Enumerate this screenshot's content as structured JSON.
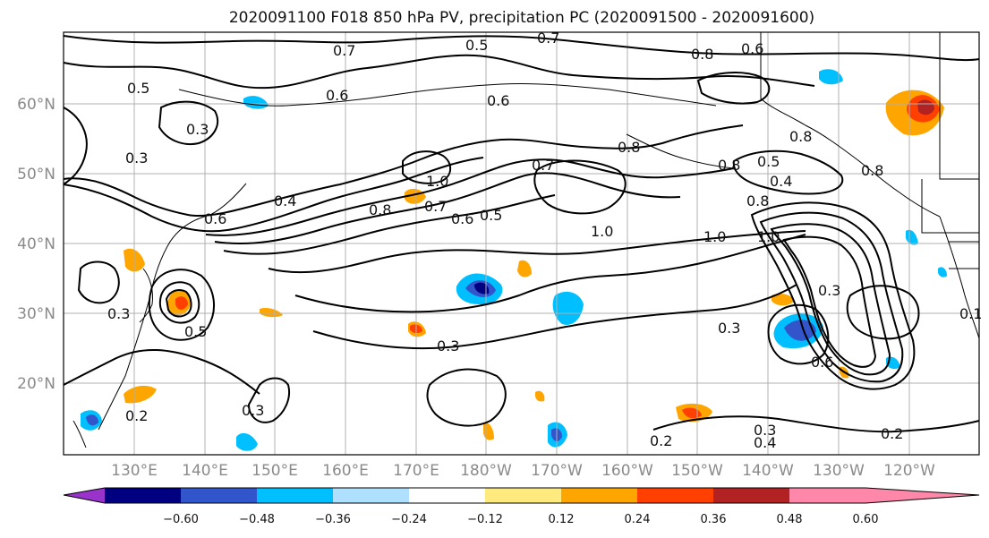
{
  "title": "2020091100 F018 850 hPa PV, precipitation PC (2020091500 - 2020091600)",
  "lat_labels": [
    "60°N",
    "50°N",
    "40°N",
    "30°N",
    "20°N"
  ],
  "lon_labels": [
    "130°E",
    "140°E",
    "150°E",
    "160°E",
    "170°E",
    "180°W",
    "170°W",
    "160°W",
    "150°W",
    "140°W",
    "130°W",
    "120°W"
  ],
  "colorbar": {
    "ticks": [
      "−0.60",
      "−0.48",
      "−0.36",
      "−0.24",
      "−0.12",
      "0.12",
      "0.24",
      "0.36",
      "0.48",
      "0.60"
    ],
    "colors": [
      "#9933cc",
      "#000080",
      "#3355cc",
      "#00bfff",
      "#b0e0ff",
      "#ffffff",
      "#ffea80",
      "#ffa500",
      "#ff4000",
      "#b22222",
      "#ff88aa"
    ]
  },
  "contour_labels": [
    "0.7",
    "0.5",
    "0.7",
    "0.8",
    "0.6",
    "0.6",
    "0.5",
    "0.6",
    "0.3",
    "0.8",
    "0.3",
    "0.4",
    "0.8",
    "1.0",
    "0.7",
    "0.5",
    "0.6",
    "0.7",
    "1.0",
    "0.8",
    "0.5",
    "0.4",
    "0.8",
    "1.0",
    "1.0",
    "0.3",
    "0.6",
    "0.3",
    "0.5",
    "0.2",
    "0.3",
    "0.3",
    "0.3",
    "0.3",
    "0.4",
    "0.2",
    "0.2",
    "0.8",
    "0.8",
    "0.1",
    "0.6"
  ],
  "precip_colors": {
    "blue_dark": "#3355cc",
    "blue": "#00bfff",
    "blue_light": "#b0e0ff",
    "navy": "#000080",
    "orange": "#ffa500",
    "yellow": "#ffea80",
    "red": "#ff4000",
    "darkred": "#b22222"
  }
}
